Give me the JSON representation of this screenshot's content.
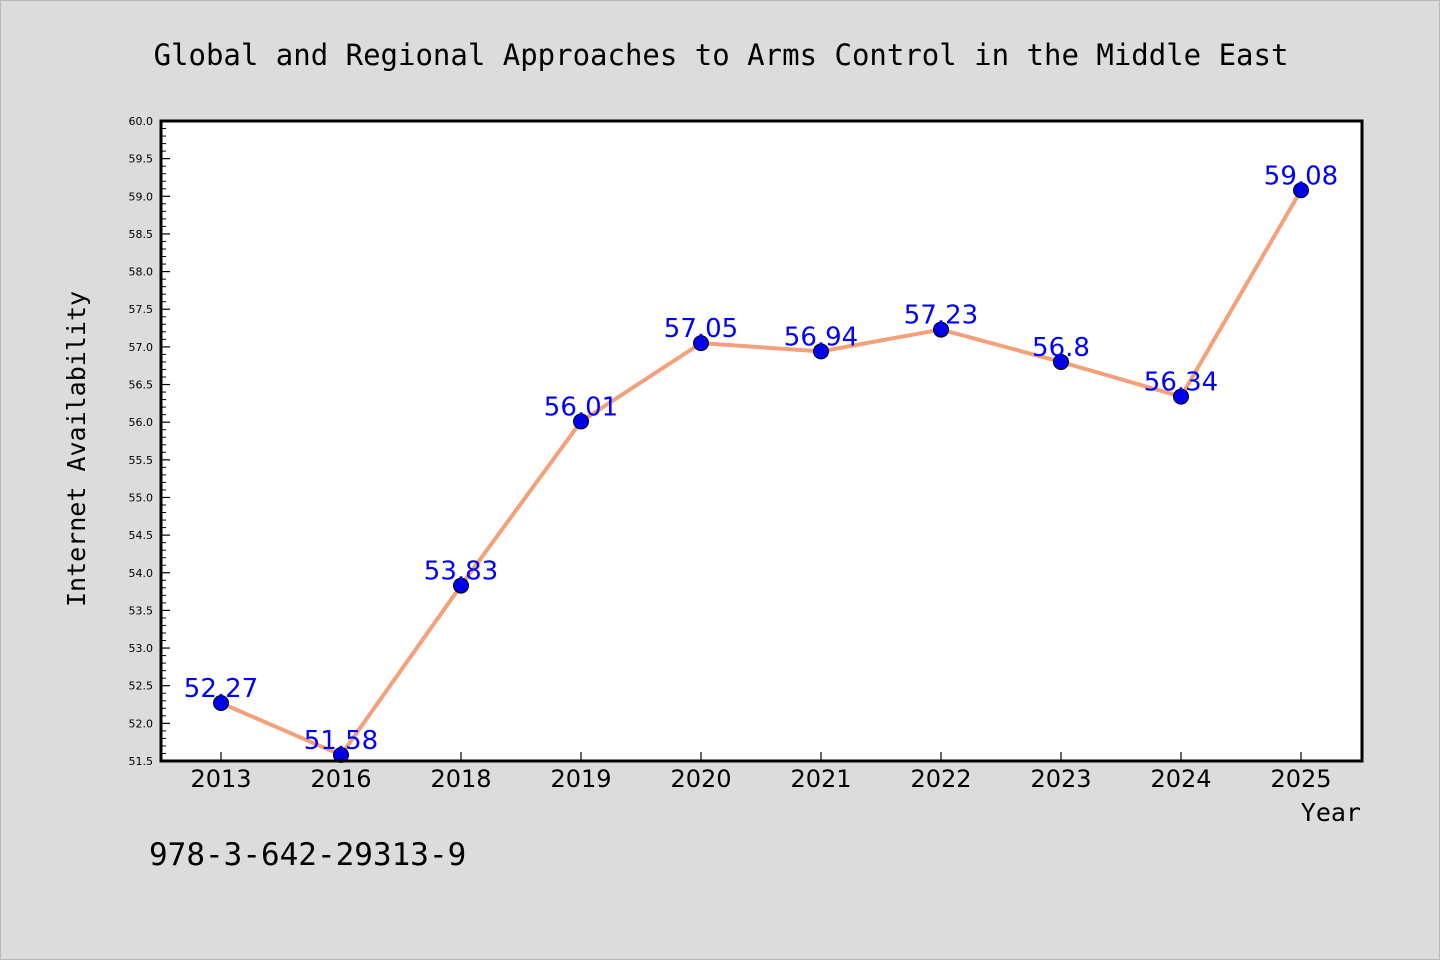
{
  "chart_data": {
    "type": "line",
    "title": "Global and Regional Approaches to Arms Control in the Middle East",
    "xlabel": "Year",
    "ylabel": "Internet Availability",
    "categories": [
      "2013",
      "2016",
      "2018",
      "2019",
      "2020",
      "2021",
      "2022",
      "2023",
      "2024",
      "2025"
    ],
    "series": [
      {
        "values": [
          52.27,
          51.58,
          53.83,
          56.01,
          57.05,
          56.94,
          57.23,
          56.8,
          56.34,
          59.08
        ],
        "labels": [
          "52.27",
          "51.58",
          "53.83",
          "56.01",
          "57.05",
          "56.94",
          "57.23",
          "56.8",
          "56.34",
          "59.08"
        ]
      }
    ],
    "ylim": [
      51.5,
      60.0
    ],
    "ytick_step": 0.5,
    "grid": false,
    "legend": "none",
    "colors": {
      "line": "#f4a07a",
      "marker": "#0000ee",
      "label": "#0000ff",
      "background": "#dcdcdc",
      "plot_area": "#ffffff"
    }
  },
  "footer": {
    "isbn": "978-3-642-29313-9"
  }
}
